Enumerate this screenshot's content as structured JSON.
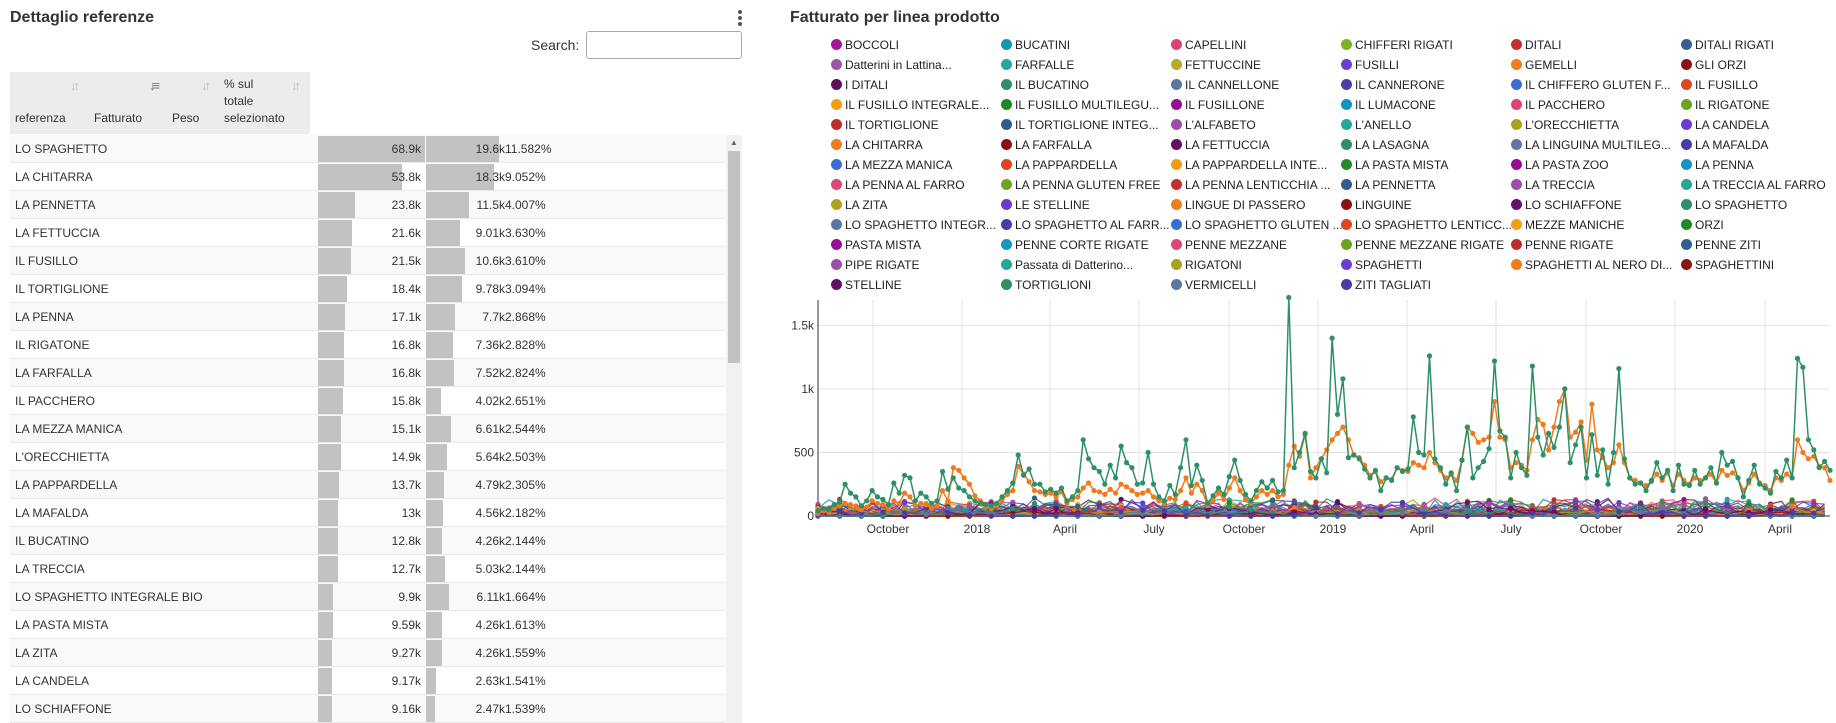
{
  "left_panel": {
    "title": "Dettaglio referenze",
    "search_label": "Search:",
    "search_value": "",
    "columns": [
      "referenza",
      "Fatturato",
      "Peso",
      "% sul totale selezionato"
    ],
    "rows": [
      {
        "name": "LO SPAGHETTO",
        "fatt_label": "68.9k",
        "fatt": 68.9,
        "peso_label": "19.6k",
        "peso": 19.6,
        "pct": "11.582%"
      },
      {
        "name": "LA CHITARRA",
        "fatt_label": "53.8k",
        "fatt": 53.8,
        "peso_label": "18.3k",
        "peso": 18.3,
        "pct": "9.052%"
      },
      {
        "name": "LA PENNETTA",
        "fatt_label": "23.8k",
        "fatt": 23.8,
        "peso_label": "11.5k",
        "peso": 11.5,
        "pct": "4.007%"
      },
      {
        "name": "LA FETTUCCIA",
        "fatt_label": "21.6k",
        "fatt": 21.6,
        "peso_label": "9.01k",
        "peso": 9.01,
        "pct": "3.630%"
      },
      {
        "name": "IL FUSILLO",
        "fatt_label": "21.5k",
        "fatt": 21.5,
        "peso_label": "10.6k",
        "peso": 10.6,
        "pct": "3.610%"
      },
      {
        "name": "IL TORTIGLIONE",
        "fatt_label": "18.4k",
        "fatt": 18.4,
        "peso_label": "9.78k",
        "peso": 9.78,
        "pct": "3.094%"
      },
      {
        "name": "LA PENNA",
        "fatt_label": "17.1k",
        "fatt": 17.1,
        "peso_label": "7.7k",
        "peso": 7.7,
        "pct": "2.868%"
      },
      {
        "name": "IL RIGATONE",
        "fatt_label": "16.8k",
        "fatt": 16.8,
        "peso_label": "7.36k",
        "peso": 7.36,
        "pct": "2.828%"
      },
      {
        "name": "LA FARFALLA",
        "fatt_label": "16.8k",
        "fatt": 16.8,
        "peso_label": "7.52k",
        "peso": 7.52,
        "pct": "2.824%"
      },
      {
        "name": "IL PACCHERO",
        "fatt_label": "15.8k",
        "fatt": 15.8,
        "peso_label": "4.02k",
        "peso": 4.02,
        "pct": "2.651%"
      },
      {
        "name": "LA MEZZA MANICA",
        "fatt_label": "15.1k",
        "fatt": 15.1,
        "peso_label": "6.61k",
        "peso": 6.61,
        "pct": "2.544%"
      },
      {
        "name": "L'ORECCHIETTA",
        "fatt_label": "14.9k",
        "fatt": 14.9,
        "peso_label": "5.64k",
        "peso": 5.64,
        "pct": "2.503%"
      },
      {
        "name": "LA PAPPARDELLA",
        "fatt_label": "13.7k",
        "fatt": 13.7,
        "peso_label": "4.79k",
        "peso": 4.79,
        "pct": "2.305%"
      },
      {
        "name": "LA MAFALDA",
        "fatt_label": "13k",
        "fatt": 13.0,
        "peso_label": "4.56k",
        "peso": 4.56,
        "pct": "2.182%"
      },
      {
        "name": "IL BUCATINO",
        "fatt_label": "12.8k",
        "fatt": 12.8,
        "peso_label": "4.26k",
        "peso": 4.26,
        "pct": "2.144%"
      },
      {
        "name": "LA TRECCIA",
        "fatt_label": "12.7k",
        "fatt": 12.7,
        "peso_label": "5.03k",
        "peso": 5.03,
        "pct": "2.144%"
      },
      {
        "name": "LO SPAGHETTO  INTEGRALE BIO",
        "fatt_label": "9.9k",
        "fatt": 9.9,
        "peso_label": "6.11k",
        "peso": 6.11,
        "pct": "1.664%"
      },
      {
        "name": "LA PASTA MISTA",
        "fatt_label": "9.59k",
        "fatt": 9.59,
        "peso_label": "4.26k",
        "peso": 4.26,
        "pct": "1.613%"
      },
      {
        "name": "LA ZITA",
        "fatt_label": "9.27k",
        "fatt": 9.27,
        "peso_label": "4.26k",
        "peso": 4.26,
        "pct": "1.559%"
      },
      {
        "name": "LA CANDELA",
        "fatt_label": "9.17k",
        "fatt": 9.17,
        "peso_label": "2.63k",
        "peso": 2.63,
        "pct": "1.541%"
      },
      {
        "name": "LO SCHIAFFONE",
        "fatt_label": "9.16k",
        "fatt": 9.16,
        "peso_label": "2.47k",
        "peso": 2.47,
        "pct": "1.539%"
      }
    ]
  },
  "right_panel": {
    "title": "Fatturato per linea prodotto",
    "legend": [
      {
        "label": "BOCCOLI",
        "color": "#a6169b"
      },
      {
        "label": "BUCATINI",
        "color": "#1197b4"
      },
      {
        "label": "CAPELLINI",
        "color": "#d9437a"
      },
      {
        "label": "CHIFFERI RIGATI",
        "color": "#7db223"
      },
      {
        "label": "DITALI",
        "color": "#c03232"
      },
      {
        "label": "DITALI RIGATI",
        "color": "#375f93"
      },
      {
        "label": "Datterini in Lattina...",
        "color": "#9a57a8"
      },
      {
        "label": "FARFALLE",
        "color": "#28a79e"
      },
      {
        "label": "FETTUCCINE",
        "color": "#b4ac22"
      },
      {
        "label": "FUSILLI",
        "color": "#6a3fcf"
      },
      {
        "label": "GEMELLI",
        "color": "#ee7f1b"
      },
      {
        "label": "GLI ORZI",
        "color": "#8f1111"
      },
      {
        "label": "I DITALI",
        "color": "#5d0f5d"
      },
      {
        "label": "IL BUCATINO",
        "color": "#2f9266"
      },
      {
        "label": "IL CANNELLONE",
        "color": "#5a77a0"
      },
      {
        "label": "IL CANNERONE",
        "color": "#4c3ea9"
      },
      {
        "label": "IL CHIFFERO GLUTEN F...",
        "color": "#3b6fd0"
      },
      {
        "label": "IL FUSILLO",
        "color": "#e2461a"
      },
      {
        "label": "IL FUSILLO INTEGRALE...",
        "color": "#f59d0e"
      },
      {
        "label": "IL FUSILLO MULTILEGU...",
        "color": "#1d8a21"
      },
      {
        "label": "IL FUSILLONE",
        "color": "#970c97"
      },
      {
        "label": "IL LUMACONE",
        "color": "#0e94c5"
      },
      {
        "label": "IL PACCHERO",
        "color": "#e04476"
      },
      {
        "label": "IL RIGATONE",
        "color": "#6aa51e"
      },
      {
        "label": "IL TORTIGLIONE",
        "color": "#c22b2b"
      },
      {
        "label": "IL TORTIGLIONE INTEG...",
        "color": "#2e5d90"
      },
      {
        "label": "L'ALFABETO",
        "color": "#9a4fa8"
      },
      {
        "label": "L'ANELLO",
        "color": "#22a79c"
      },
      {
        "label": "L'ORECCHIETTA",
        "color": "#aaa01c"
      },
      {
        "label": "LA CANDELA",
        "color": "#6a39d6"
      },
      {
        "label": "LA CHITARRA",
        "color": "#ef7b1d"
      },
      {
        "label": "LA FARFALLA",
        "color": "#8f0f0f"
      },
      {
        "label": "LA FETTUCCIA",
        "color": "#640f64"
      },
      {
        "label": "LA LASAGNA",
        "color": "#2d8f62"
      },
      {
        "label": "LA LINGUINA MULTILEG...",
        "color": "#5e77a0"
      },
      {
        "label": "LA MAFALDA",
        "color": "#4739a8"
      },
      {
        "label": "LA MEZZA MANICA",
        "color": "#3b6fd6"
      },
      {
        "label": "LA PAPPARDELLA",
        "color": "#e1441b"
      },
      {
        "label": "LA PAPPARDELLA INTE...",
        "color": "#f29d10"
      },
      {
        "label": "LA PASTA MISTA",
        "color": "#248a2a"
      },
      {
        "label": "LA PASTA ZOO",
        "color": "#980c98"
      },
      {
        "label": "LA PENNA",
        "color": "#1294c8"
      },
      {
        "label": "LA PENNA AL FARRO",
        "color": "#dd4678"
      },
      {
        "label": "LA PENNA GLUTEN FREE",
        "color": "#6da51c"
      },
      {
        "label": "LA PENNA LENTICCHIA ...",
        "color": "#c42e2e"
      },
      {
        "label": "LA PENNETTA",
        "color": "#2f5e8e"
      },
      {
        "label": "LA TRECCIA",
        "color": "#9c4ea6"
      },
      {
        "label": "LA TRECCIA AL FARRO",
        "color": "#26a59a"
      },
      {
        "label": "LA ZITA",
        "color": "#a8a41e"
      },
      {
        "label": "LE STELLINE",
        "color": "#6b3bd1"
      },
      {
        "label": "LINGUE DI PASSERO",
        "color": "#ee7e1c"
      },
      {
        "label": "LINGUINE",
        "color": "#8d1010"
      },
      {
        "label": "LO SCHIAFFONE",
        "color": "#660f66"
      },
      {
        "label": "LO SPAGHETTO",
        "color": "#2e9066"
      },
      {
        "label": "LO SPAGHETTO INTEGR...",
        "color": "#5d76a1"
      },
      {
        "label": "LO SPAGHETTO AL FARR...",
        "color": "#4a3ba8"
      },
      {
        "label": "LO SPAGHETTO GLUTEN ...",
        "color": "#3a6dd3"
      },
      {
        "label": "LO SPAGHETTO LENTICC...",
        "color": "#e2441c"
      },
      {
        "label": "MEZZE MANICHE",
        "color": "#f49e12"
      },
      {
        "label": "ORZI",
        "color": "#1f8b25"
      },
      {
        "label": "PASTA MISTA",
        "color": "#9a0d9a"
      },
      {
        "label": "PENNE CORTE RIGATE",
        "color": "#1396c4"
      },
      {
        "label": "PENNE MEZZANE",
        "color": "#df4577"
      },
      {
        "label": "PENNE MEZZANE RIGATE",
        "color": "#6ba41f"
      },
      {
        "label": "PENNE RIGATE",
        "color": "#c12d2d"
      },
      {
        "label": "PENNE ZITI",
        "color": "#305f91"
      },
      {
        "label": "PIPE RIGATE",
        "color": "#9b50a7"
      },
      {
        "label": "Passata di Datterino...",
        "color": "#24a69b"
      },
      {
        "label": "RIGATONI",
        "color": "#aaa21f"
      },
      {
        "label": "SPAGHETTI",
        "color": "#6b3cd2"
      },
      {
        "label": "SPAGHETTI AL NERO DI...",
        "color": "#ef7d1b"
      },
      {
        "label": "SPAGHETTINI",
        "color": "#8e1111"
      },
      {
        "label": "STELLINE",
        "color": "#630f63"
      },
      {
        "label": "TORTIGLIONI",
        "color": "#2e9165"
      },
      {
        "label": "VERMICELLI",
        "color": "#5c77a0"
      },
      {
        "label": "ZITI TAGLIATI",
        "color": "#4a3ba9"
      }
    ]
  },
  "chart_data": {
    "type": "line",
    "title": "Fatturato per linea prodotto",
    "xlabel": "",
    "ylabel": "",
    "ylim": [
      0,
      1700
    ],
    "y_ticks": [
      "0",
      "500",
      "1k",
      "1.5k"
    ],
    "x_ticks": [
      "October",
      "2018",
      "April",
      "July",
      "October",
      "2019",
      "April",
      "July",
      "October",
      "2020",
      "April"
    ],
    "x_range": [
      "2017-08",
      "2020-05"
    ],
    "grid": true,
    "legend_position": "top",
    "series": [
      {
        "name": "LO SPAGHETTO",
        "color": "#2e9066",
        "values": [
          40,
          60,
          50,
          90,
          110,
          250,
          180,
          150,
          80,
          120,
          200,
          150,
          130,
          90,
          260,
          180,
          320,
          300,
          120,
          180,
          150,
          100,
          120,
          350,
          210,
          300,
          220,
          200,
          150,
          120,
          100,
          90,
          80,
          100,
          150,
          200,
          260,
          480,
          320,
          370,
          250,
          250,
          190,
          210,
          180,
          220,
          120,
          150,
          200,
          600,
          450,
          380,
          350,
          250,
          400,
          300,
          550,
          420,
          380,
          250,
          260,
          500,
          250,
          150,
          120,
          240,
          170,
          380,
          600,
          240,
          400,
          280,
          100,
          160,
          220,
          170,
          310,
          440,
          280,
          170,
          120,
          200,
          270,
          220,
          280,
          190,
          200,
          1720,
          380,
          500,
          650,
          350,
          300,
          450,
          340,
          1400,
          800,
          1080,
          460,
          480,
          450,
          370,
          300,
          360,
          200,
          300,
          280,
          380,
          350,
          370,
          780,
          500,
          480,
          1260,
          450,
          380,
          250,
          340,
          200,
          440,
          700,
          300,
          380,
          430,
          530,
          1220,
          670,
          620,
          300,
          500,
          380,
          320,
          1180,
          620,
          480,
          650,
          540,
          700,
          1000,
          420,
          560,
          700,
          300,
          640,
          320,
          520,
          250,
          500,
          1160,
          450,
          300,
          250,
          260,
          200,
          280,
          420,
          300,
          360,
          200,
          400,
          250,
          240,
          360,
          250,
          300,
          380,
          260,
          500,
          400,
          430,
          300,
          150,
          280,
          400,
          250,
          220,
          180,
          350,
          300,
          440,
          300,
          1240,
          1170,
          600,
          520,
          380,
          430,
          360
        ]
      },
      {
        "name": "LA CHITARRA",
        "color": "#ef7b1d",
        "values": [
          20,
          40,
          30,
          60,
          80,
          100,
          90,
          80,
          50,
          70,
          120,
          100,
          90,
          60,
          120,
          100,
          180,
          150,
          80,
          100,
          90,
          60,
          80,
          200,
          120,
          380,
          360,
          300,
          250,
          160,
          120,
          70,
          60,
          80,
          120,
          170,
          200,
          390,
          330,
          270,
          200,
          190,
          170,
          180,
          150,
          190,
          100,
          130,
          150,
          220,
          260,
          200,
          190,
          170,
          210,
          180,
          250,
          230,
          200,
          170,
          180,
          200,
          150,
          120,
          100,
          140,
          130,
          200,
          300,
          180,
          250,
          200,
          80,
          120,
          180,
          130,
          220,
          300,
          200,
          130,
          100,
          150,
          200,
          170,
          200,
          150,
          170,
          400,
          550,
          470,
          640,
          300,
          380,
          450,
          520,
          600,
          650,
          700,
          600,
          480,
          460,
          400,
          320,
          350,
          270,
          300,
          290,
          380,
          360,
          350,
          420,
          400,
          380,
          500,
          420,
          360,
          300,
          330,
          280,
          440,
          700,
          650,
          580,
          600,
          620,
          900,
          620,
          600,
          380,
          420,
          400,
          360,
          600,
          760,
          720,
          520,
          700,
          900,
          1000,
          620,
          660,
          740,
          440,
          880,
          520,
          460,
          380,
          420,
          560,
          420,
          300,
          280,
          260,
          240,
          270,
          330,
          280,
          340,
          240,
          330,
          280,
          250,
          300,
          280,
          300,
          330,
          260,
          360,
          320,
          340,
          300,
          200,
          260,
          330,
          260,
          240,
          200,
          300,
          280,
          330,
          300,
          600,
          500,
          450,
          470,
          390,
          380,
          280
        ]
      }
    ]
  }
}
